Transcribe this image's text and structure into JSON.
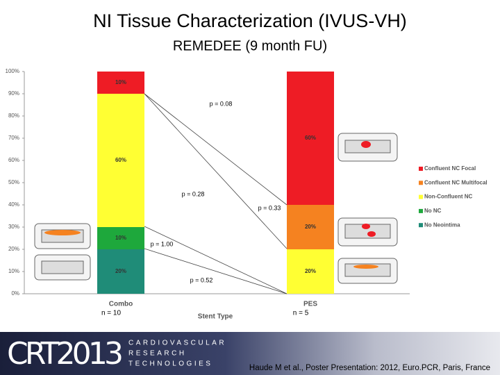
{
  "chart_data": {
    "type": "stacked_bar",
    "title": "NI Tissue Characterization (IVUS-VH)",
    "subtitle": "REMEDEE (9 month FU)",
    "x_label": "Stent Type",
    "categories": [
      "Combo",
      "PES"
    ],
    "sample_sizes": [
      "n = 10",
      "n = 5"
    ],
    "series": [
      {
        "name": "No Neointima",
        "color": "#1f8c78",
        "values": [
          20,
          0
        ],
        "value_labels": [
          "20%",
          null
        ]
      },
      {
        "name": "No NC",
        "color": "#1ea83c",
        "values": [
          10,
          0
        ],
        "value_labels": [
          "10%",
          null
        ]
      },
      {
        "name": "Non-Confluent NC",
        "color": "#ffff33",
        "values": [
          60,
          20
        ],
        "value_labels": [
          "60%",
          "20%"
        ]
      },
      {
        "name": "Confluent NC Multifocal",
        "color": "#f58220",
        "values": [
          0,
          20
        ],
        "value_labels": [
          null,
          "20%"
        ]
      },
      {
        "name": "Confluent NC Focal",
        "color": "#ee1c25",
        "values": [
          10,
          60
        ],
        "value_labels": [
          "10%",
          "60%"
        ]
      }
    ],
    "ylim": [
      0,
      100
    ],
    "yticks": [
      {
        "value": 0,
        "label": "0%"
      },
      {
        "value": 10,
        "label": "10%"
      },
      {
        "value": 20,
        "label": "20%"
      },
      {
        "value": 30,
        "label": "30%"
      },
      {
        "value": 40,
        "label": "40%"
      },
      {
        "value": 50,
        "label": "50%"
      },
      {
        "value": 60,
        "label": "60%"
      },
      {
        "value": 70,
        "label": "70%"
      },
      {
        "value": 80,
        "label": "80%"
      },
      {
        "value": 90,
        "label": "90%"
      },
      {
        "value": 100,
        "label": "100%"
      }
    ],
    "grid": false,
    "legend": "right",
    "annotations": [
      "p = 0.08",
      "p = 0.28",
      "p = 0.33",
      "p = 1.00",
      "p = 0.52"
    ]
  },
  "footer": {
    "logo": "CRT2013",
    "organization": [
      "CARDIOVASCULAR",
      "RESEARCH",
      "TECHNOLOGIES"
    ],
    "citation": "Haude M et al., Poster Presentation: 2012, Euro.PCR, Paris, France"
  }
}
